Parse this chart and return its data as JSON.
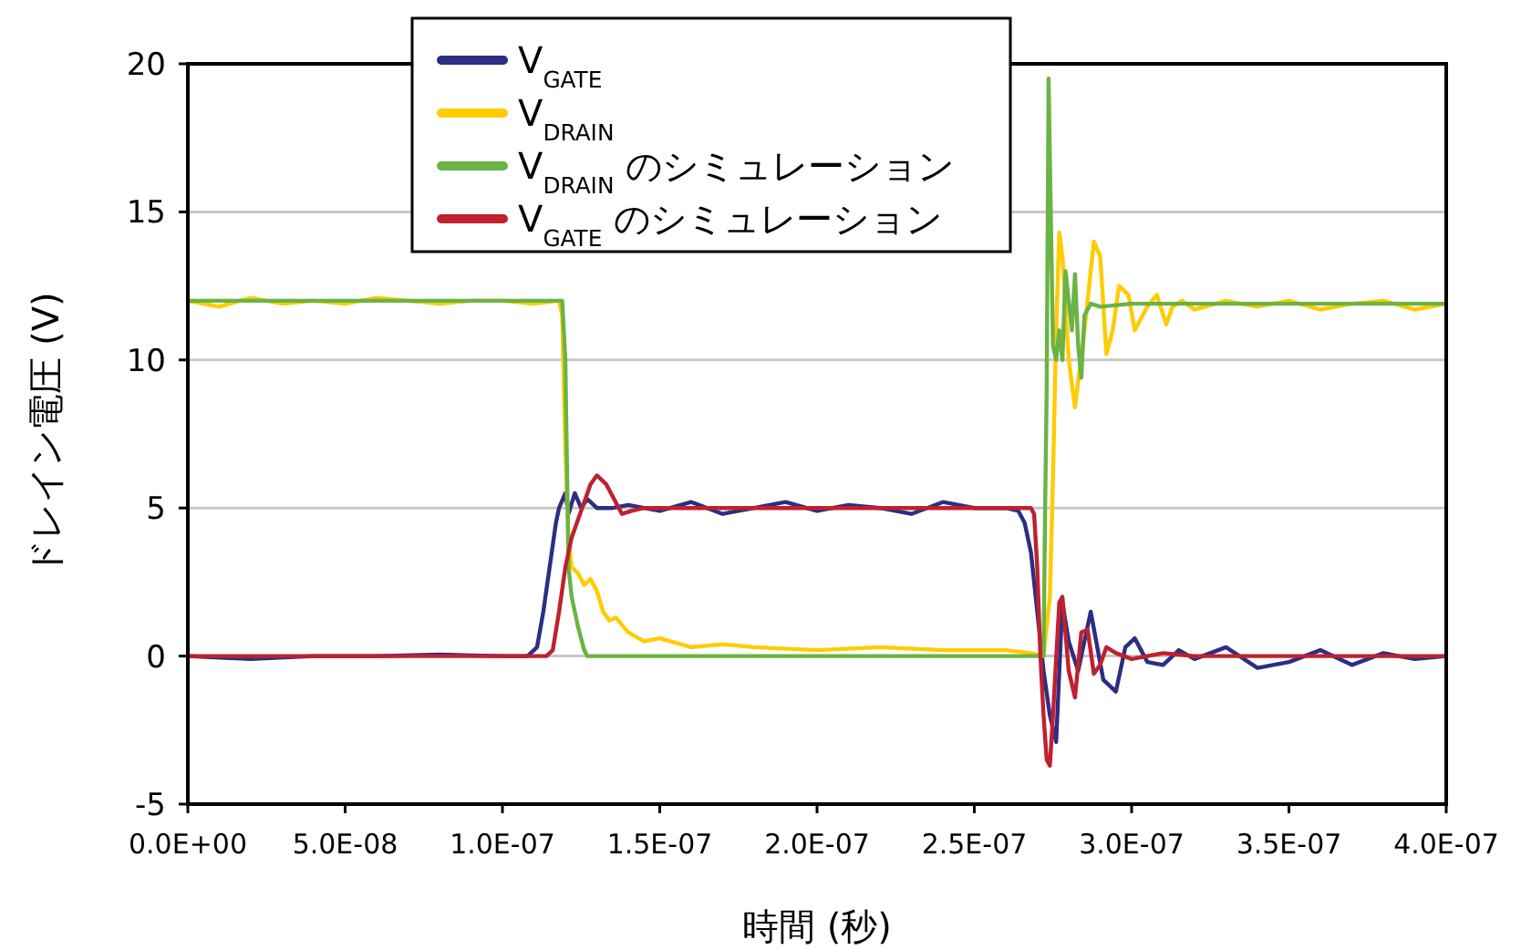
{
  "chart_data": {
    "type": "line",
    "xlabel": "時間 (秒)",
    "ylabel": "ドレイン電圧 (V)",
    "xlim": [
      0,
      4e-07
    ],
    "ylim": [
      -5,
      20
    ],
    "xticks": [
      {
        "value": 0,
        "label": "0.0E+00"
      },
      {
        "value": 5e-08,
        "label": "5.0E-08"
      },
      {
        "value": 1e-07,
        "label": "1.0E-07"
      },
      {
        "value": 1.5e-07,
        "label": "1.5E-07"
      },
      {
        "value": 2e-07,
        "label": "2.0E-07"
      },
      {
        "value": 2.5e-07,
        "label": "2.5E-07"
      },
      {
        "value": 3e-07,
        "label": "3.0E-07"
      },
      {
        "value": 3.5e-07,
        "label": "3.5E-07"
      },
      {
        "value": 4e-07,
        "label": "4.0E-07"
      }
    ],
    "yticks": [
      -5,
      0,
      5,
      10,
      15,
      20
    ],
    "grid": "y",
    "legend": "top",
    "marker": "none",
    "line_style": "solid",
    "series": [
      {
        "name": "V$_{GATE}$",
        "color": "#2b2e83",
        "x": [
          0,
          2e-08,
          4e-08,
          6e-08,
          8e-08,
          1e-07,
          1.08e-07,
          1.11e-07,
          1.13e-07,
          1.15e-07,
          1.17e-07,
          1.18e-07,
          1.2e-07,
          1.21e-07,
          1.23e-07,
          1.25e-07,
          1.27e-07,
          1.3e-07,
          1.35e-07,
          1.4e-07,
          1.5e-07,
          1.6e-07,
          1.7e-07,
          1.8e-07,
          1.9e-07,
          2e-07,
          2.1e-07,
          2.2e-07,
          2.3e-07,
          2.4e-07,
          2.5e-07,
          2.6e-07,
          2.64e-07,
          2.66e-07,
          2.68e-07,
          2.7e-07,
          2.72e-07,
          2.74e-07,
          2.76e-07,
          2.78e-07,
          2.8e-07,
          2.83e-07,
          2.87e-07,
          2.91e-07,
          2.95e-07,
          2.98e-07,
          3.01e-07,
          3.05e-07,
          3.1e-07,
          3.15e-07,
          3.2e-07,
          3.3e-07,
          3.4e-07,
          3.5e-07,
          3.6e-07,
          3.7e-07,
          3.8e-07,
          3.9e-07,
          4e-07
        ],
        "values": [
          0,
          -0.1,
          0,
          0,
          0.05,
          0,
          0,
          0.3,
          1.5,
          3,
          4.5,
          5,
          5.5,
          4.8,
          5.5,
          5,
          5.3,
          5,
          5,
          5.1,
          4.9,
          5.2,
          4.8,
          5,
          5.2,
          4.9,
          5.1,
          5,
          4.8,
          5.2,
          5,
          5,
          4.9,
          4.5,
          3.5,
          1.5,
          -0.5,
          -2,
          -2.9,
          1.8,
          0.5,
          -0.5,
          1.5,
          -0.8,
          -1.2,
          0.3,
          0.6,
          -0.2,
          -0.3,
          0.2,
          -0.1,
          0.3,
          -0.4,
          -0.2,
          0.2,
          -0.3,
          0.1,
          -0.1,
          0
        ]
      },
      {
        "name": "V$_{DRAIN}$",
        "color": "#ffcc00",
        "x": [
          0,
          1e-08,
          2e-08,
          3e-08,
          4e-08,
          5e-08,
          6e-08,
          7e-08,
          8e-08,
          9e-08,
          1e-07,
          1.1e-07,
          1.18e-07,
          1.19e-07,
          1.2e-07,
          1.21e-07,
          1.22e-07,
          1.24e-07,
          1.26e-07,
          1.28e-07,
          1.3e-07,
          1.32e-07,
          1.34e-07,
          1.36e-07,
          1.4e-07,
          1.45e-07,
          1.5e-07,
          1.6e-07,
          1.7e-07,
          1.8e-07,
          2e-07,
          2.2e-07,
          2.4e-07,
          2.6e-07,
          2.68e-07,
          2.72e-07,
          2.74e-07,
          2.75e-07,
          2.76e-07,
          2.77e-07,
          2.78e-07,
          2.8e-07,
          2.82e-07,
          2.85e-07,
          2.88e-07,
          2.9e-07,
          2.92e-07,
          2.94e-07,
          2.96e-07,
          2.99e-07,
          3.01e-07,
          3.05e-07,
          3.08e-07,
          3.11e-07,
          3.13e-07,
          3.16e-07,
          3.2e-07,
          3.3e-07,
          3.4e-07,
          3.5e-07,
          3.6e-07,
          3.7e-07,
          3.8e-07,
          3.9e-07,
          4e-07
        ],
        "values": [
          12,
          11.8,
          12.1,
          11.9,
          12,
          11.9,
          12.1,
          12,
          11.9,
          12,
          12,
          11.9,
          12,
          11.5,
          7,
          4,
          3,
          2.8,
          2.4,
          2.6,
          2.2,
          1.5,
          1.2,
          1.3,
          0.8,
          0.5,
          0.6,
          0.3,
          0.4,
          0.3,
          0.2,
          0.3,
          0.2,
          0.2,
          0.1,
          0,
          2,
          6,
          11,
          14.3,
          13.5,
          10,
          8.4,
          11,
          14,
          13.5,
          10.2,
          11,
          12.5,
          12.2,
          11,
          11.8,
          12.2,
          11.2,
          11.8,
          12,
          11.7,
          12,
          11.8,
          12,
          11.7,
          11.9,
          12,
          11.7,
          11.9
        ]
      },
      {
        "name": "V$_{DRAIN}$ のシミュレーション",
        "color": "#6ab344",
        "x": [
          0,
          1.19e-07,
          1.2e-07,
          1.21e-07,
          1.22e-07,
          1.24e-07,
          1.26e-07,
          1.27e-07,
          2e-07,
          2.72e-07,
          2.725e-07,
          2.73e-07,
          2.736e-07,
          2.743e-07,
          2.75e-07,
          2.76e-07,
          2.77e-07,
          2.78e-07,
          2.79e-07,
          2.8e-07,
          2.81e-07,
          2.82e-07,
          2.83e-07,
          2.84e-07,
          2.85e-07,
          2.87e-07,
          2.9e-07,
          3e-07,
          4e-07
        ],
        "values": [
          12,
          12,
          10,
          3,
          2,
          1,
          0.2,
          0,
          0,
          0,
          5,
          9,
          19.5,
          15,
          10.5,
          10,
          11,
          10,
          13,
          12,
          11,
          12.9,
          10.5,
          9.4,
          11.5,
          11.9,
          11.8,
          11.9,
          11.9
        ]
      },
      {
        "name": "V$_{GATE}$ のシミュレーション",
        "color": "#c0202f",
        "x": [
          0,
          1.1e-07,
          1.14e-07,
          1.16e-07,
          1.18e-07,
          1.2e-07,
          1.22e-07,
          1.24e-07,
          1.26e-07,
          1.28e-07,
          1.3e-07,
          1.33e-07,
          1.36e-07,
          1.38e-07,
          1.41e-07,
          1.45e-07,
          1.5e-07,
          2e-07,
          2.5e-07,
          2.68e-07,
          2.69e-07,
          2.7e-07,
          2.71e-07,
          2.72e-07,
          2.73e-07,
          2.74e-07,
          2.75e-07,
          2.77e-07,
          2.78e-07,
          2.8e-07,
          2.82e-07,
          2.84e-07,
          2.86e-07,
          2.88e-07,
          2.9e-07,
          2.92e-07,
          2.95e-07,
          3e-07,
          3.1e-07,
          3.2e-07,
          3.5e-07,
          4e-07
        ],
        "values": [
          0,
          0,
          0,
          0.2,
          1.5,
          3,
          4,
          4.6,
          5.2,
          5.8,
          6.1,
          5.8,
          5.2,
          4.8,
          4.9,
          5,
          5,
          5,
          5,
          5,
          4.8,
          3,
          0,
          -2,
          -3.5,
          -3.7,
          -2,
          1.8,
          2,
          -0.5,
          -1.4,
          0.8,
          0.9,
          -0.6,
          -0.3,
          0.3,
          0.1,
          -0.1,
          0.1,
          0,
          0,
          0
        ]
      }
    ]
  }
}
